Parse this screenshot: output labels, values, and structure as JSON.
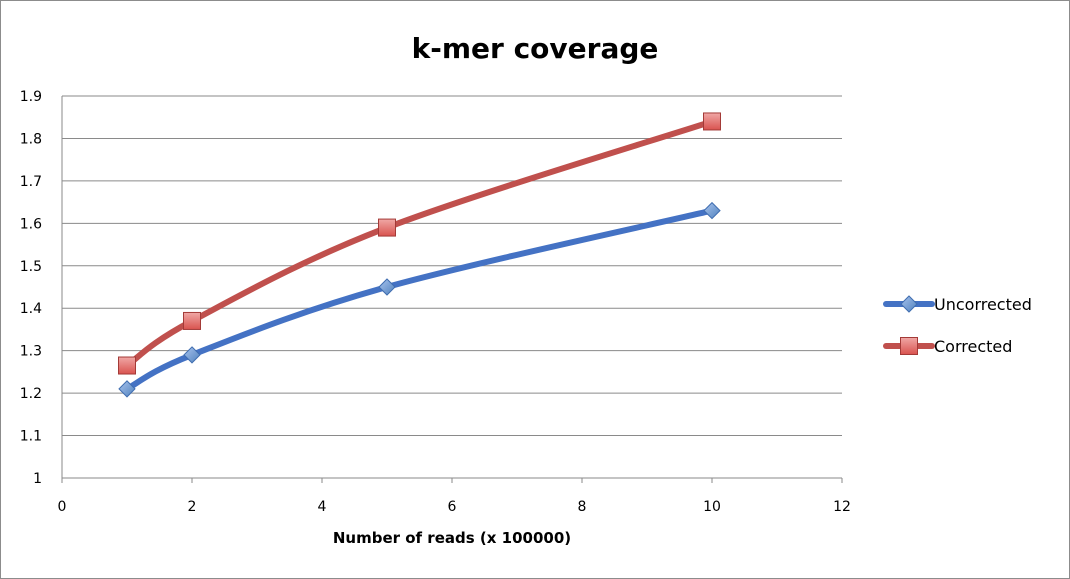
{
  "chart_data": {
    "type": "line",
    "title": "k-mer coverage",
    "xlabel": "Number of reads (x 100000)",
    "ylabel": "",
    "xlim": [
      0,
      12
    ],
    "ylim": [
      1,
      1.9
    ],
    "xticks": [
      "0",
      "2",
      "4",
      "6",
      "8",
      "10",
      "12"
    ],
    "yticks": [
      "1",
      "1.1",
      "1.2",
      "1.3",
      "1.4",
      "1.5",
      "1.6",
      "1.7",
      "1.8",
      "1.9"
    ],
    "grid": true,
    "legend_position": "right",
    "series": [
      {
        "name": "Uncorrected",
        "color": "#4472c4",
        "marker": "diamond",
        "x": [
          1,
          2,
          5,
          10
        ],
        "y": [
          1.21,
          1.29,
          1.45,
          1.63
        ]
      },
      {
        "name": "Corrected",
        "color": "#c0504d",
        "marker": "square",
        "x": [
          1,
          2,
          5,
          10
        ],
        "y": [
          1.265,
          1.37,
          1.59,
          1.84
        ]
      }
    ]
  }
}
